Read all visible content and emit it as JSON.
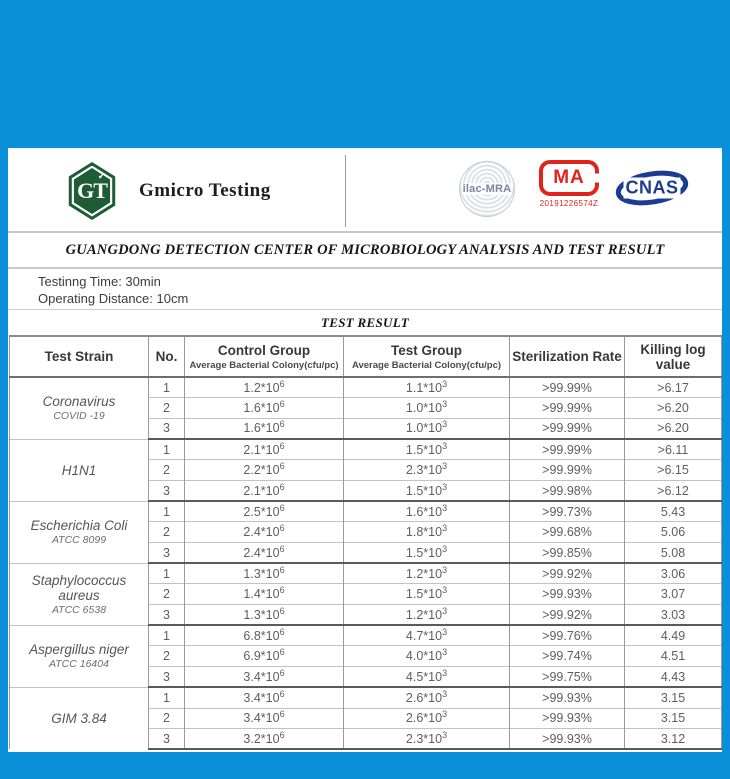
{
  "colors": {
    "background_blue": "#0a8fd9",
    "brand_green": "#1e5c36",
    "cma_red": "#e0241b",
    "cnas_blue": "#1c3c91",
    "ilac_gray": "#7b87a0"
  },
  "header": {
    "brand": {
      "logo_letters": "GT",
      "name": "Gmicro Testing"
    },
    "accreditations": {
      "ilac_label": "ilac-MRA",
      "cma_label": "MA",
      "cma_number": "20191226574Z",
      "cnas_label": "CNAS"
    }
  },
  "doc_title": "GUANGDONG DETECTION CENTER OF MICROBIOLOGY ANALYSIS AND TEST RESULT",
  "info": {
    "testing_time": "Testinng Time: 30min",
    "operating_distance": "Operating Distance: 10cm"
  },
  "section_title": "TEST RESULT",
  "table": {
    "columns": {
      "strain": "Test Strain",
      "no": "No.",
      "control": "Control Group",
      "test": "Test Group",
      "rate": "Sterilization Rate",
      "log": "Killing log value"
    },
    "sub_headers": {
      "control": "Average  Bacterial Colony(cfu/pc)",
      "test": "Average  Bacterial Colony(cfu/pc)"
    },
    "groups": [
      {
        "strain": "Coronavirus",
        "subtitle": "COVID -19",
        "rows": [
          {
            "no": "1",
            "control": "1.2*10^6",
            "test": "1.1*10^3",
            "rate": ">99.99%",
            "log": ">6.17"
          },
          {
            "no": "2",
            "control": "1.6*10^6",
            "test": "1.0*10^3",
            "rate": ">99.99%",
            "log": ">6.20"
          },
          {
            "no": "3",
            "control": "1.6*10^6",
            "test": "1.0*10^3",
            "rate": ">99.99%",
            "log": ">6.20"
          }
        ]
      },
      {
        "strain": "H1N1",
        "subtitle": "",
        "rows": [
          {
            "no": "1",
            "control": "2.1*10^6",
            "test": "1.5*10^3",
            "rate": ">99.99%",
            "log": ">6.11"
          },
          {
            "no": "2",
            "control": "2.2*10^6",
            "test": "2.3*10^3",
            "rate": ">99.99%",
            "log": ">6.15"
          },
          {
            "no": "3",
            "control": "2.1*10^6",
            "test": "1.5*10^3",
            "rate": ">99.98%",
            "log": ">6.12"
          }
        ]
      },
      {
        "strain": "Escherichia Coli",
        "subtitle": "ATCC 8099",
        "rows": [
          {
            "no": "1",
            "control": "2.5*10^6",
            "test": "1.6*10^3",
            "rate": ">99.73%",
            "log": "5.43"
          },
          {
            "no": "2",
            "control": "2.4*10^6",
            "test": "1.8*10^3",
            "rate": ">99.68%",
            "log": "5.06"
          },
          {
            "no": "3",
            "control": "2.4*10^6",
            "test": "1.5*10^3",
            "rate": ">99.85%",
            "log": "5.08"
          }
        ]
      },
      {
        "strain": "Staphylococcus aureus",
        "subtitle": "ATCC 6538",
        "rows": [
          {
            "no": "1",
            "control": "1.3*10^6",
            "test": "1.2*10^3",
            "rate": ">99.92%",
            "log": "3.06"
          },
          {
            "no": "2",
            "control": "1.4*10^6",
            "test": "1.5*10^3",
            "rate": ">99.93%",
            "log": "3.07"
          },
          {
            "no": "3",
            "control": "1.3*10^6",
            "test": "1.2*10^3",
            "rate": ">99.92%",
            "log": "3.03"
          }
        ]
      },
      {
        "strain": "Aspergillus niger",
        "subtitle": "ATCC 16404",
        "rows": [
          {
            "no": "1",
            "control": "6.8*10^6",
            "test": "4.7*10^3",
            "rate": ">99.76%",
            "log": "4.49"
          },
          {
            "no": "2",
            "control": "6.9*10^6",
            "test": "4.0*10^3",
            "rate": ">99.74%",
            "log": "4.51"
          },
          {
            "no": "3",
            "control": "3.4*10^6",
            "test": "4.5*10^3",
            "rate": ">99.75%",
            "log": "4.43"
          }
        ]
      },
      {
        "strain": "GIM 3.84",
        "subtitle": "",
        "rows": [
          {
            "no": "1",
            "control": "3.4*10^6",
            "test": "2.6*10^3",
            "rate": ">99.93%",
            "log": "3.15"
          },
          {
            "no": "2",
            "control": "3.4*10^6",
            "test": "2.6*10^3",
            "rate": ">99.93%",
            "log": "3.15"
          },
          {
            "no": "3",
            "control": "3.2*10^6",
            "test": "2.3*10^3",
            "rate": ">99.93%",
            "log": "3.12"
          }
        ]
      }
    ]
  }
}
